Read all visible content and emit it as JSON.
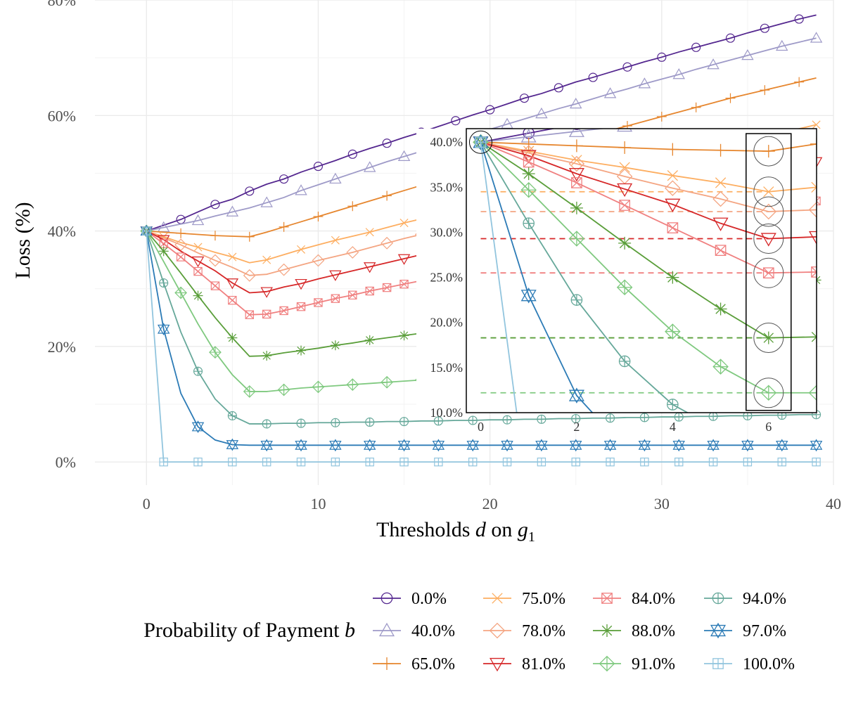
{
  "chart_data": {
    "type": "line",
    "xlabel": "Thresholds d on g1",
    "xlabel_parts": [
      "Thresholds ",
      "d",
      " on ",
      "g",
      "1"
    ],
    "ylabel": "Loss (%)",
    "xlim": [
      -3,
      40
    ],
    "ylim": [
      -4,
      80
    ],
    "x_ticks": [
      0,
      10,
      20,
      30,
      40
    ],
    "y_ticks": [
      0,
      20,
      40,
      60,
      80
    ],
    "x_tick_labels": [
      "0",
      "10",
      "20",
      "30",
      "40"
    ],
    "y_tick_labels": [
      "0%",
      "20%",
      "40%",
      "60%",
      "80%"
    ],
    "grid": true,
    "legend": {
      "title": "Probability of Payment b",
      "title_parts": [
        "Probability of Payment ",
        "b"
      ],
      "placement": "bottom"
    },
    "series": [
      {
        "name": "0.0%",
        "color": "#54278f",
        "marker": "circle",
        "x": [
          0,
          1,
          2,
          3,
          4,
          5,
          6,
          7,
          8,
          9,
          10,
          11,
          12,
          13,
          14,
          15,
          16,
          17,
          18,
          19,
          20,
          21,
          22,
          23,
          24,
          25,
          26,
          27,
          28,
          29,
          30,
          31,
          32,
          33,
          34,
          35,
          36,
          37,
          38,
          39
        ],
        "y": [
          40.0,
          41.0,
          42.0,
          43.3,
          44.6,
          45.5,
          46.9,
          48.1,
          49.0,
          50.2,
          51.2,
          52.2,
          53.3,
          54.3,
          55.2,
          56.2,
          57.1,
          58.1,
          59.1,
          60.1,
          61.0,
          62.0,
          63.0,
          63.8,
          64.8,
          65.8,
          66.6,
          67.5,
          68.4,
          69.3,
          70.1,
          71.0,
          71.8,
          72.6,
          73.4,
          74.3,
          75.1,
          75.9,
          76.7,
          77.4
        ],
        "marker_every": 2,
        "marker_start": 0
      },
      {
        "name": "40.0%",
        "color": "#9e9ac8",
        "marker": "triangle-up",
        "x": [
          0,
          1,
          2,
          3,
          4,
          5,
          6,
          7,
          8,
          9,
          10,
          11,
          12,
          13,
          14,
          15,
          16,
          17,
          18,
          19,
          20,
          21,
          22,
          23,
          24,
          25,
          26,
          27,
          28,
          29,
          30,
          31,
          32,
          33,
          34,
          35,
          36,
          37,
          38,
          39
        ],
        "y": [
          40.0,
          40.6,
          41.2,
          41.8,
          42.6,
          43.3,
          44.0,
          44.9,
          45.8,
          47.0,
          48.0,
          49.0,
          50.0,
          51.0,
          52.0,
          52.9,
          53.8,
          54.8,
          55.7,
          56.7,
          57.6,
          58.5,
          59.4,
          60.3,
          61.2,
          62.0,
          62.9,
          63.8,
          64.6,
          65.5,
          66.3,
          67.1,
          68.0,
          68.8,
          69.6,
          70.4,
          71.2,
          72.0,
          72.7,
          73.4
        ],
        "marker_every": 2,
        "marker_start": 1
      },
      {
        "name": "65.0%",
        "color": "#e6862e",
        "marker": "plus",
        "x": [
          0,
          1,
          2,
          3,
          4,
          5,
          6,
          7,
          8,
          9,
          10,
          11,
          12,
          13,
          14,
          15,
          16,
          17,
          18,
          19,
          20,
          21,
          22,
          23,
          24,
          25,
          26,
          27,
          28,
          29,
          30,
          31,
          32,
          33,
          34,
          35,
          36,
          37,
          38,
          39
        ],
        "y": [
          40.0,
          39.8,
          39.6,
          39.4,
          39.2,
          39.1,
          39.0,
          39.8,
          40.7,
          41.6,
          42.5,
          43.4,
          44.3,
          45.2,
          46.1,
          47.0,
          47.9,
          48.8,
          49.7,
          50.6,
          51.5,
          52.4,
          53.3,
          54.2,
          55.0,
          55.8,
          56.6,
          57.4,
          58.2,
          59.0,
          59.8,
          60.6,
          61.4,
          62.2,
          63.0,
          63.7,
          64.4,
          65.1,
          65.8,
          66.5
        ],
        "marker_every": 2,
        "marker_start": 0
      },
      {
        "name": "75.0%",
        "color": "#fdae61",
        "marker": "x",
        "x": [
          0,
          1,
          2,
          3,
          4,
          5,
          6,
          7,
          8,
          9,
          10,
          11,
          12,
          13,
          14,
          15,
          16,
          17,
          18,
          19,
          20,
          21,
          22,
          23,
          24,
          25,
          26,
          27,
          28,
          29,
          30,
          31,
          32,
          33,
          34,
          35,
          36,
          37,
          38,
          39
        ],
        "y": [
          40.0,
          39.0,
          38.0,
          37.2,
          36.3,
          35.5,
          34.5,
          35.0,
          35.9,
          36.8,
          37.6,
          38.4,
          39.1,
          39.8,
          40.6,
          41.4,
          42.1,
          42.9,
          43.6,
          44.4,
          45.1,
          45.8,
          46.5,
          47.2,
          47.9,
          48.6,
          49.3,
          50.0,
          50.7,
          51.4,
          52.1,
          52.8,
          53.5,
          54.2,
          54.9,
          55.6,
          56.3,
          57.0,
          57.7,
          58.4
        ],
        "marker_every": 2,
        "marker_start": 1
      },
      {
        "name": "78.0%",
        "color": "#f4a582",
        "marker": "diamond",
        "x": [
          0,
          1,
          2,
          3,
          4,
          5,
          6,
          7,
          8,
          9,
          10,
          11,
          12,
          13,
          14,
          15,
          16,
          17,
          18,
          19,
          20,
          21,
          22,
          23,
          24,
          25,
          26,
          27,
          28,
          29,
          30,
          31,
          32,
          33,
          34,
          35,
          36,
          37,
          38,
          39
        ],
        "y": [
          40.0,
          38.8,
          37.6,
          36.2,
          34.9,
          33.7,
          32.3,
          32.5,
          33.3,
          34.1,
          34.9,
          35.6,
          36.3,
          37.1,
          37.9,
          38.7,
          39.4,
          40.2,
          40.9,
          41.7,
          42.4,
          43.1,
          43.8,
          44.5,
          45.2,
          45.9,
          46.6,
          47.3,
          48.0,
          48.7,
          49.4,
          50.1,
          50.8,
          51.5,
          52.2,
          52.9,
          53.6,
          54.3,
          55.0,
          55.7
        ],
        "marker_every": 2,
        "marker_start": 0
      },
      {
        "name": "81.0%",
        "color": "#d62728",
        "marker": "triangle-down",
        "x": [
          0,
          1,
          2,
          3,
          4,
          5,
          6,
          7,
          8,
          9,
          10,
          11,
          12,
          13,
          14,
          15,
          16,
          17,
          18,
          19,
          20,
          21,
          22,
          23,
          24,
          25,
          26,
          27,
          28,
          29,
          30,
          31,
          32,
          33,
          34,
          35,
          36,
          37,
          38,
          39
        ],
        "y": [
          40.0,
          38.5,
          36.5,
          34.8,
          33.1,
          31.0,
          29.3,
          29.5,
          30.3,
          30.9,
          31.7,
          32.4,
          33.1,
          33.8,
          34.5,
          35.2,
          35.9,
          36.6,
          37.3,
          38.0,
          38.7,
          39.4,
          40.1,
          40.8,
          41.5,
          42.2,
          42.9,
          43.6,
          44.3,
          45.0,
          45.7,
          46.4,
          47.1,
          47.8,
          48.5,
          49.2,
          49.9,
          50.6,
          51.3,
          52.0
        ],
        "marker_every": 2,
        "marker_start": 1
      },
      {
        "name": "84.0%",
        "color": "#f08080",
        "marker": "square-x",
        "x": [
          0,
          1,
          2,
          3,
          4,
          5,
          6,
          7,
          8,
          9,
          10,
          11,
          12,
          13,
          14,
          15,
          16,
          17,
          18,
          19,
          20,
          21,
          22,
          23,
          24,
          25,
          26,
          27,
          28,
          29,
          30,
          31,
          32,
          33,
          34,
          35,
          36,
          37,
          38,
          39
        ],
        "y": [
          40.0,
          37.8,
          35.5,
          33.0,
          30.5,
          28.0,
          25.5,
          25.6,
          26.2,
          26.9,
          27.6,
          28.3,
          28.9,
          29.6,
          30.2,
          30.8,
          31.4,
          32.0,
          32.6,
          33.2,
          33.8,
          34.4,
          35.0,
          35.6,
          36.2,
          36.8,
          37.4,
          38.0,
          38.6,
          39.2,
          39.8,
          40.4,
          41.0,
          41.6,
          42.2,
          42.8,
          43.4,
          44.0,
          44.6,
          45.2
        ],
        "marker_every": 1,
        "marker_start": 0
      },
      {
        "name": "88.0%",
        "color": "#5a9e3a",
        "marker": "asterisk",
        "x": [
          0,
          1,
          2,
          3,
          4,
          5,
          6,
          7,
          8,
          9,
          10,
          11,
          12,
          13,
          14,
          15,
          16,
          17,
          18,
          19,
          20,
          21,
          22,
          23,
          24,
          25,
          26,
          27,
          28,
          29,
          30,
          31,
          32,
          33,
          34,
          35,
          36,
          37,
          38,
          39
        ],
        "y": [
          40.0,
          36.5,
          32.7,
          28.8,
          25.0,
          21.5,
          18.3,
          18.4,
          18.9,
          19.3,
          19.7,
          20.2,
          20.6,
          21.1,
          21.5,
          21.9,
          22.3,
          22.7,
          23.1,
          23.5,
          23.9,
          24.3,
          24.7,
          25.1,
          25.5,
          25.9,
          26.3,
          26.7,
          27.1,
          27.5,
          27.9,
          28.3,
          28.7,
          29.1,
          29.5,
          29.9,
          30.3,
          30.7,
          31.1,
          31.5
        ],
        "marker_every": 2,
        "marker_start": 1
      },
      {
        "name": "91.0%",
        "color": "#7fc97f",
        "marker": "diamond-plus",
        "x": [
          0,
          1,
          2,
          3,
          4,
          5,
          6,
          7,
          8,
          9,
          10,
          11,
          12,
          13,
          14,
          15,
          16,
          17,
          18,
          19,
          20,
          21,
          22,
          23,
          24,
          25,
          26,
          27,
          28,
          29,
          30,
          31,
          32,
          33,
          34,
          35,
          36,
          37,
          38,
          39
        ],
        "y": [
          40.0,
          34.7,
          29.3,
          23.9,
          19.0,
          15.1,
          12.2,
          12.2,
          12.5,
          12.8,
          13.0,
          13.2,
          13.4,
          13.6,
          13.8,
          14.0,
          14.2,
          14.4,
          14.6,
          14.8,
          15.0,
          15.2,
          15.4,
          15.6,
          15.8,
          16.0,
          16.2,
          16.4,
          16.6,
          16.8,
          17.0,
          17.2,
          17.4,
          17.6,
          17.8,
          18.0,
          18.2,
          18.4,
          18.6,
          18.8
        ],
        "marker_every": 2,
        "marker_start": 0
      },
      {
        "name": "94.0%",
        "color": "#66a89a",
        "marker": "circle-plus",
        "x": [
          0,
          1,
          2,
          3,
          4,
          5,
          6,
          7,
          8,
          9,
          10,
          11,
          12,
          13,
          14,
          15,
          16,
          17,
          18,
          19,
          20,
          21,
          22,
          23,
          24,
          25,
          26,
          27,
          28,
          29,
          30,
          31,
          32,
          33,
          34,
          35,
          36,
          37,
          38,
          39
        ],
        "y": [
          40.0,
          31.0,
          22.5,
          15.7,
          10.9,
          8.0,
          6.6,
          6.6,
          6.7,
          6.7,
          6.8,
          6.8,
          6.9,
          6.9,
          7.0,
          7.0,
          7.1,
          7.1,
          7.2,
          7.2,
          7.3,
          7.3,
          7.4,
          7.4,
          7.5,
          7.5,
          7.6,
          7.6,
          7.7,
          7.7,
          7.8,
          7.8,
          7.9,
          7.9,
          8.0,
          8.0,
          8.1,
          8.1,
          8.2,
          8.2
        ],
        "marker_every": 2,
        "marker_start": 1
      },
      {
        "name": "97.0%",
        "color": "#2c7bb6",
        "marker": "star6",
        "x": [
          0,
          1,
          2,
          3,
          4,
          5,
          6,
          7,
          8,
          9,
          10,
          11,
          12,
          13,
          14,
          15,
          16,
          17,
          18,
          19,
          20,
          21,
          22,
          23,
          24,
          25,
          26,
          27,
          28,
          29,
          30,
          31,
          32,
          33,
          34,
          35,
          36,
          37,
          38,
          39
        ],
        "y": [
          40.0,
          23.0,
          11.9,
          6.1,
          3.8,
          3.0,
          2.9,
          2.9,
          2.9,
          2.9,
          2.9,
          2.9,
          2.9,
          2.9,
          2.9,
          2.9,
          2.9,
          2.9,
          2.9,
          2.9,
          2.9,
          2.9,
          2.9,
          2.9,
          2.9,
          2.9,
          2.9,
          2.9,
          2.9,
          2.9,
          2.9,
          2.9,
          2.9,
          2.9,
          2.9,
          2.9,
          2.9,
          2.9,
          2.9,
          2.9
        ],
        "marker_every": 2,
        "marker_start": 1
      },
      {
        "name": "100.0%",
        "color": "#92c5de",
        "marker": "square-plus",
        "x": [
          0,
          1,
          2,
          3,
          4,
          5,
          6,
          7,
          8,
          9,
          10,
          11,
          12,
          13,
          14,
          15,
          16,
          17,
          18,
          19,
          20,
          21,
          22,
          23,
          24,
          25,
          26,
          27,
          28,
          29,
          30,
          31,
          32,
          33,
          34,
          35,
          36,
          37,
          38,
          39
        ],
        "y": [
          40.0,
          0.0,
          0.0,
          0.0,
          0.0,
          0.0,
          0.0,
          0.0,
          0.0,
          0.0,
          0.0,
          0.0,
          0.0,
          0.0,
          0.0,
          0.0,
          0.0,
          0.0,
          0.0,
          0.0,
          0.0,
          0.0,
          0.0,
          0.0,
          0.0,
          0.0,
          0.0,
          0.0,
          0.0,
          0.0,
          0.0,
          0.0,
          0.0,
          0.0,
          0.0,
          0.0,
          0.0,
          0.0,
          0.0,
          0.0
        ],
        "marker_every": 2,
        "marker_start": 1
      }
    ],
    "inset": {
      "xlim": [
        -0.3,
        7.0
      ],
      "ylim": [
        10.0,
        41.5
      ],
      "x_ticks": [
        0,
        2,
        4,
        6
      ],
      "y_ticks": [
        10,
        15,
        20,
        25,
        30,
        35,
        40
      ],
      "x_tick_labels": [
        "0",
        "2",
        "4",
        "6"
      ],
      "y_tick_labels": [
        "10.0%",
        "15.0%",
        "20.0%",
        "25.0%",
        "30.0%",
        "35.0%",
        "40.0%"
      ],
      "highlight_x": 6,
      "origin_circle": {
        "x": 0,
        "y": 40.0
      },
      "minima": [
        {
          "series": "65.0%",
          "y": 39.0
        },
        {
          "series": "75.0%",
          "y": 34.5
        },
        {
          "series": "78.0%",
          "y": 32.3
        },
        {
          "series": "81.0%",
          "y": 29.3
        },
        {
          "series": "84.0%",
          "y": 25.5
        },
        {
          "series": "88.0%",
          "y": 18.3
        },
        {
          "series": "91.0%",
          "y": 12.2
        }
      ],
      "dashed_reference_series": [
        "75.0%",
        "78.0%",
        "81.0%",
        "84.0%",
        "88.0%",
        "91.0%"
      ]
    }
  }
}
